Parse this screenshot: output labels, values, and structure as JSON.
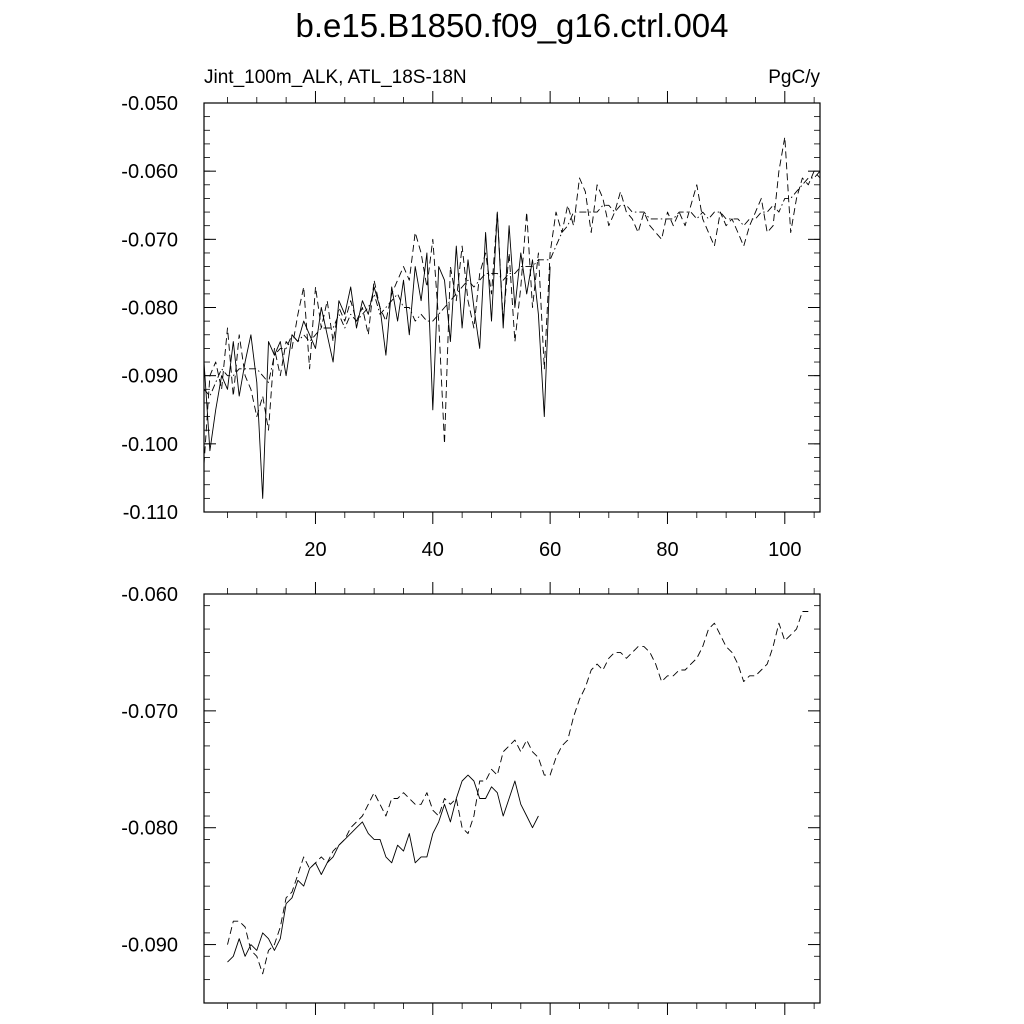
{
  "figure": {
    "title": "b.e15.B1850.f09_g16.ctrl.004",
    "left_label": "Jint_100m_ALK, ATL_18S-18N",
    "right_label": "PgC/y"
  },
  "chart_data": [
    {
      "type": "line",
      "title": "",
      "xlabel": "",
      "ylabel": "",
      "xlim": [
        1,
        106
      ],
      "ylim": [
        -0.11,
        -0.05
      ],
      "yticks": [
        -0.05,
        -0.06,
        -0.07,
        -0.08,
        -0.09,
        -0.1,
        -0.11
      ],
      "ytick_labels": [
        "-0.050",
        "-0.060",
        "-0.070",
        "-0.080",
        "-0.090",
        "-0.100",
        "-0.110"
      ],
      "xticks": [
        20,
        40,
        60,
        80,
        100
      ],
      "xtick_labels": [
        "20",
        "40",
        "60",
        "80",
        "100"
      ],
      "grid": false,
      "series": [
        {
          "style": "solid",
          "x": [
            1,
            2,
            3,
            4,
            5,
            6,
            7,
            8,
            9,
            10,
            11,
            12,
            13,
            14,
            15,
            16,
            17,
            18,
            19,
            20,
            21,
            22,
            23,
            24,
            25,
            26,
            27,
            28,
            29,
            30,
            31,
            32,
            33,
            34,
            35,
            36,
            37,
            38,
            39,
            40,
            41,
            42,
            43,
            44,
            45,
            46,
            47,
            48,
            49,
            50,
            51,
            52,
            53,
            54,
            55,
            56,
            57,
            58,
            59,
            60
          ],
          "y": [
            -0.088,
            -0.101,
            -0.095,
            -0.09,
            -0.092,
            -0.085,
            -0.093,
            -0.088,
            -0.084,
            -0.091,
            -0.108,
            -0.085,
            -0.087,
            -0.085,
            -0.09,
            -0.084,
            -0.085,
            -0.082,
            -0.084,
            -0.086,
            -0.08,
            -0.084,
            -0.088,
            -0.079,
            -0.081,
            -0.077,
            -0.083,
            -0.079,
            -0.081,
            -0.077,
            -0.08,
            -0.087,
            -0.077,
            -0.082,
            -0.076,
            -0.084,
            -0.074,
            -0.079,
            -0.072,
            -0.095,
            -0.074,
            -0.076,
            -0.085,
            -0.071,
            -0.083,
            -0.073,
            -0.08,
            -0.086,
            -0.069,
            -0.082,
            -0.066,
            -0.083,
            -0.068,
            -0.08,
            -0.072,
            -0.078,
            -0.073,
            -0.081,
            -0.096,
            -0.074
          ]
        },
        {
          "style": "dash",
          "x": [
            1,
            2,
            3,
            4,
            5,
            6,
            7,
            8,
            9,
            10,
            11,
            12,
            13,
            14,
            15,
            16,
            17,
            18,
            19,
            20,
            21,
            22,
            23,
            24,
            25,
            26,
            27,
            28,
            29,
            30,
            31,
            32,
            33,
            34,
            35,
            36,
            37,
            38,
            39,
            40,
            41,
            42,
            43,
            44,
            45,
            46,
            47,
            48,
            49,
            50,
            51,
            52,
            53,
            54,
            55,
            56,
            57,
            58,
            59,
            60,
            61,
            62,
            63,
            64,
            65,
            66,
            67,
            68,
            69,
            70,
            71,
            72,
            73,
            74,
            75,
            76,
            77,
            78,
            79,
            80,
            81,
            82,
            83,
            84,
            85,
            86,
            87,
            88,
            89,
            90,
            91,
            92,
            93,
            94,
            95,
            96,
            97,
            98,
            99,
            100,
            101,
            102,
            103,
            104,
            105,
            106
          ],
          "y": [
            -0.103,
            -0.09,
            -0.088,
            -0.092,
            -0.083,
            -0.093,
            -0.084,
            -0.09,
            -0.092,
            -0.096,
            -0.093,
            -0.098,
            -0.086,
            -0.09,
            -0.085,
            -0.086,
            -0.081,
            -0.077,
            -0.089,
            -0.077,
            -0.083,
            -0.079,
            -0.085,
            -0.08,
            -0.082,
            -0.079,
            -0.082,
            -0.08,
            -0.084,
            -0.076,
            -0.08,
            -0.082,
            -0.078,
            -0.076,
            -0.074,
            -0.076,
            -0.069,
            -0.072,
            -0.077,
            -0.07,
            -0.082,
            -0.1,
            -0.074,
            -0.079,
            -0.071,
            -0.079,
            -0.083,
            -0.075,
            -0.072,
            -0.078,
            -0.066,
            -0.082,
            -0.072,
            -0.085,
            -0.077,
            -0.066,
            -0.08,
            -0.072,
            -0.089,
            -0.072,
            -0.066,
            -0.069,
            -0.065,
            -0.068,
            -0.061,
            -0.063,
            -0.069,
            -0.062,
            -0.064,
            -0.068,
            -0.066,
            -0.063,
            -0.066,
            -0.067,
            -0.069,
            -0.066,
            -0.068,
            -0.069,
            -0.07,
            -0.066,
            -0.068,
            -0.066,
            -0.068,
            -0.065,
            -0.062,
            -0.067,
            -0.069,
            -0.071,
            -0.066,
            -0.068,
            -0.067,
            -0.069,
            -0.071,
            -0.068,
            -0.066,
            -0.064,
            -0.069,
            -0.068,
            -0.06,
            -0.055,
            -0.069,
            -0.064,
            -0.061,
            -0.062,
            -0.06,
            -0.061
          ]
        },
        {
          "style": "dashdot",
          "x": [
            1,
            2,
            3,
            4,
            5,
            6,
            7,
            8,
            9,
            10,
            11,
            12,
            13,
            14,
            15,
            16,
            17,
            18,
            19,
            20,
            21,
            22,
            23,
            24,
            25,
            26,
            27,
            28,
            29,
            30,
            31,
            32,
            33,
            34,
            35,
            36,
            37,
            38,
            39,
            40,
            41,
            42,
            43,
            44,
            45,
            46,
            47,
            48,
            49,
            50,
            51,
            52,
            53,
            54,
            55,
            56,
            57,
            58,
            59,
            60,
            61,
            62,
            63,
            64,
            65,
            66,
            67,
            68,
            69,
            70,
            71,
            72,
            73,
            74,
            75,
            76,
            77,
            78,
            79,
            80,
            81,
            82,
            83,
            84,
            85,
            86,
            87,
            88,
            89,
            90,
            91,
            92,
            93,
            94,
            95,
            96,
            97,
            98,
            99,
            100,
            101,
            102,
            103,
            104,
            105,
            106
          ],
          "y": [
            -0.092,
            -0.093,
            -0.091,
            -0.089,
            -0.09,
            -0.09,
            -0.089,
            -0.089,
            -0.089,
            -0.089,
            -0.09,
            -0.091,
            -0.087,
            -0.086,
            -0.086,
            -0.084,
            -0.085,
            -0.084,
            -0.085,
            -0.084,
            -0.083,
            -0.083,
            -0.083,
            -0.081,
            -0.083,
            -0.081,
            -0.082,
            -0.081,
            -0.08,
            -0.078,
            -0.081,
            -0.08,
            -0.079,
            -0.078,
            -0.08,
            -0.08,
            -0.082,
            -0.081,
            -0.082,
            -0.082,
            -0.081,
            -0.08,
            -0.079,
            -0.078,
            -0.077,
            -0.076,
            -0.077,
            -0.076,
            -0.075,
            -0.075,
            -0.075,
            -0.076,
            -0.075,
            -0.075,
            -0.074,
            -0.074,
            -0.074,
            -0.073,
            -0.073,
            -0.073,
            -0.071,
            -0.069,
            -0.068,
            -0.066,
            -0.066,
            -0.066,
            -0.066,
            -0.066,
            -0.065,
            -0.065,
            -0.066,
            -0.065,
            -0.065,
            -0.066,
            -0.066,
            -0.066,
            -0.067,
            -0.067,
            -0.067,
            -0.067,
            -0.067,
            -0.066,
            -0.066,
            -0.066,
            -0.067,
            -0.066,
            -0.067,
            -0.066,
            -0.066,
            -0.067,
            -0.067,
            -0.067,
            -0.068,
            -0.067,
            -0.067,
            -0.066,
            -0.066,
            -0.065,
            -0.066,
            -0.064,
            -0.064,
            -0.063,
            -0.062,
            -0.061,
            -0.061,
            -0.06
          ]
        }
      ]
    },
    {
      "type": "line",
      "title": "",
      "xlabel": "",
      "ylabel": "",
      "xlim": [
        1,
        106
      ],
      "ylim": [
        -0.095,
        -0.06
      ],
      "yticks": [
        -0.06,
        -0.07,
        -0.08,
        -0.09
      ],
      "ytick_labels": [
        "-0.060",
        "-0.070",
        "-0.080",
        "-0.090"
      ],
      "xticks": [
        20,
        40,
        60,
        80,
        100
      ],
      "grid": false,
      "series": [
        {
          "style": "solid",
          "x": [
            5,
            6,
            7,
            8,
            9,
            10,
            11,
            12,
            13,
            14,
            15,
            16,
            17,
            18,
            19,
            20,
            21,
            22,
            23,
            24,
            25,
            26,
            27,
            28,
            29,
            30,
            31,
            32,
            33,
            34,
            35,
            36,
            37,
            38,
            39,
            40,
            41,
            42,
            43,
            44,
            45,
            46,
            47,
            48,
            49,
            50,
            51,
            52,
            53,
            54,
            55,
            56,
            57,
            58
          ],
          "y": [
            -0.0915,
            -0.091,
            -0.0895,
            -0.091,
            -0.09,
            -0.0905,
            -0.089,
            -0.0895,
            -0.0905,
            -0.0895,
            -0.0865,
            -0.086,
            -0.0845,
            -0.085,
            -0.0835,
            -0.083,
            -0.084,
            -0.083,
            -0.0825,
            -0.0815,
            -0.081,
            -0.0805,
            -0.08,
            -0.0795,
            -0.0805,
            -0.081,
            -0.081,
            -0.0825,
            -0.083,
            -0.0815,
            -0.082,
            -0.0805,
            -0.083,
            -0.0825,
            -0.0825,
            -0.0805,
            -0.0795,
            -0.078,
            -0.0795,
            -0.0775,
            -0.076,
            -0.0755,
            -0.076,
            -0.0775,
            -0.0775,
            -0.0765,
            -0.077,
            -0.079,
            -0.0775,
            -0.076,
            -0.078,
            -0.079,
            -0.08,
            -0.079
          ]
        },
        {
          "style": "dash",
          "x": [
            5,
            6,
            7,
            8,
            9,
            10,
            11,
            12,
            13,
            14,
            15,
            16,
            17,
            18,
            19,
            20,
            21,
            22,
            23,
            24,
            25,
            26,
            27,
            28,
            29,
            30,
            31,
            32,
            33,
            34,
            35,
            36,
            37,
            38,
            39,
            40,
            41,
            42,
            43,
            44,
            45,
            46,
            47,
            48,
            49,
            50,
            51,
            52,
            53,
            54,
            55,
            56,
            57,
            58,
            59,
            60,
            61,
            62,
            63,
            64,
            65,
            66,
            67,
            68,
            69,
            70,
            71,
            72,
            73,
            74,
            75,
            76,
            77,
            78,
            79,
            80,
            81,
            82,
            83,
            84,
            85,
            86,
            87,
            88,
            89,
            90,
            91,
            92,
            93,
            94,
            95,
            96,
            97,
            98,
            99,
            100,
            101,
            102,
            103,
            104
          ],
          "y": [
            -0.09,
            -0.088,
            -0.088,
            -0.0885,
            -0.0905,
            -0.091,
            -0.0925,
            -0.0905,
            -0.09,
            -0.0885,
            -0.086,
            -0.0855,
            -0.084,
            -0.0825,
            -0.0835,
            -0.083,
            -0.0825,
            -0.083,
            -0.082,
            -0.0815,
            -0.081,
            -0.08,
            -0.0795,
            -0.079,
            -0.078,
            -0.077,
            -0.078,
            -0.079,
            -0.0775,
            -0.0775,
            -0.077,
            -0.0775,
            -0.078,
            -0.078,
            -0.077,
            -0.0785,
            -0.079,
            -0.0775,
            -0.078,
            -0.0775,
            -0.08,
            -0.0805,
            -0.079,
            -0.076,
            -0.076,
            -0.075,
            -0.0755,
            -0.0735,
            -0.073,
            -0.0725,
            -0.0735,
            -0.0725,
            -0.0735,
            -0.074,
            -0.0755,
            -0.0755,
            -0.074,
            -0.073,
            -0.0725,
            -0.0705,
            -0.069,
            -0.068,
            -0.0665,
            -0.066,
            -0.0665,
            -0.0655,
            -0.065,
            -0.065,
            -0.0655,
            -0.065,
            -0.0645,
            -0.0645,
            -0.065,
            -0.066,
            -0.0675,
            -0.067,
            -0.067,
            -0.0665,
            -0.0665,
            -0.066,
            -0.0655,
            -0.0645,
            -0.063,
            -0.0625,
            -0.0635,
            -0.0645,
            -0.065,
            -0.066,
            -0.0675,
            -0.067,
            -0.067,
            -0.0665,
            -0.066,
            -0.0645,
            -0.0625,
            -0.064,
            -0.0635,
            -0.063,
            -0.0615,
            -0.0615
          ]
        }
      ]
    }
  ]
}
